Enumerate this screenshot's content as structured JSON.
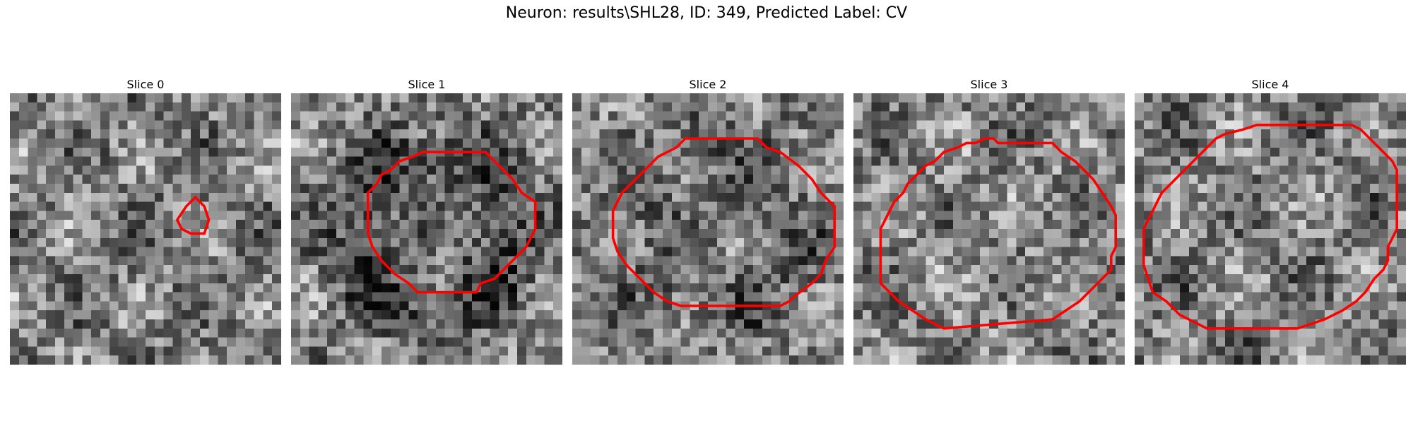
{
  "figure": {
    "suptitle": "Neuron: results\\SHL28, ID: 349, Predicted Label: CV",
    "contour_color": "#ff0000",
    "colormap": "gray",
    "panels": [
      {
        "title": "Slice 0",
        "seed": 11,
        "dark_center": 0.0
      },
      {
        "title": "Slice 1",
        "seed": 23,
        "dark_center": 0.25
      },
      {
        "title": "Slice 2",
        "seed": 37,
        "dark_center": 0.1
      },
      {
        "title": "Slice 3",
        "seed": 41,
        "dark_center": -0.05
      },
      {
        "title": "Slice 4",
        "seed": 53,
        "dark_center": 0.0
      }
    ]
  }
}
